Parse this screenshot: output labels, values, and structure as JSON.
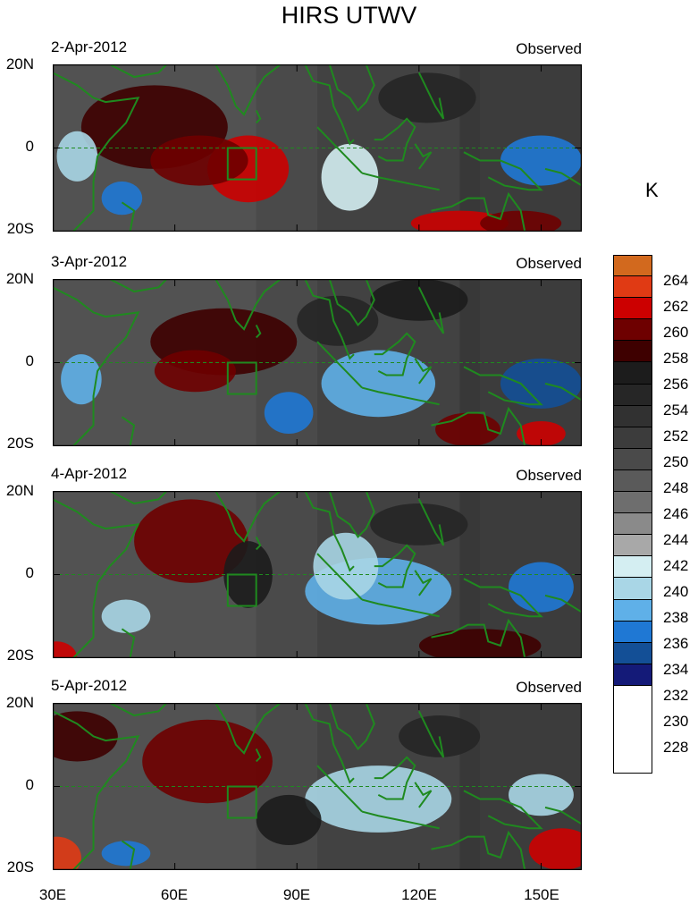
{
  "title": "HIRS UTWV",
  "panels": [
    {
      "date": "2-Apr-2012",
      "label": "Observed"
    },
    {
      "date": "3-Apr-2012",
      "label": "Observed"
    },
    {
      "date": "4-Apr-2012",
      "label": "Observed"
    },
    {
      "date": "5-Apr-2012",
      "label": "Observed"
    }
  ],
  "lat_labels": [
    "20N",
    "0",
    "20S"
  ],
  "lon_labels": [
    "30E",
    "60E",
    "90E",
    "120E",
    "150E"
  ],
  "colorbar": {
    "units": "K",
    "labels": [
      "264",
      "262",
      "260",
      "258",
      "256",
      "254",
      "252",
      "250",
      "248",
      "246",
      "244",
      "242",
      "240",
      "238",
      "236",
      "234",
      "232",
      "230",
      "228"
    ],
    "colors": [
      "#d2691e",
      "#e03a14",
      "#cc0000",
      "#6e0000",
      "#3e0000",
      "#1c1c1c",
      "#262626",
      "#313131",
      "#3c3c3c",
      "#4a4a4a",
      "#5a5a5a",
      "#6e6e6e",
      "#8a8a8a",
      "#a8a8a8",
      "#d4eef2",
      "#a9d6e6",
      "#5fb0e8",
      "#1f78d4",
      "#134f96",
      "#141a78"
    ]
  },
  "colors": {
    "coast": "#1f8a1f",
    "box": "#1f8a1f"
  }
}
